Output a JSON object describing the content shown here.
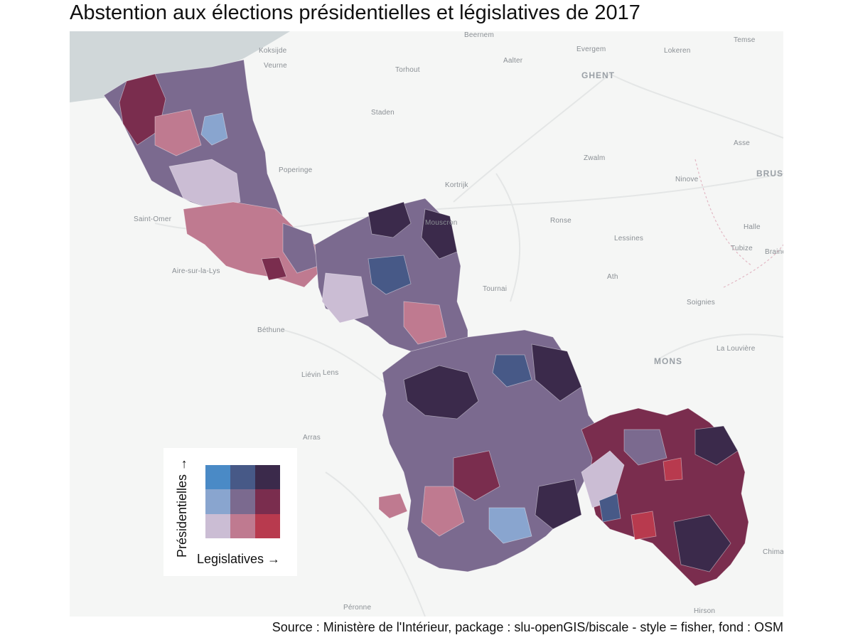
{
  "title": "Abstention aux élections présidentielles et législatives de 2017",
  "source": "Source : Ministère de l'Intérieur, package : slu-openGIS/biscale - style = fisher, fond : OSM",
  "legend": {
    "x_label": "Legislatives →",
    "y_label": "Présidentielles →",
    "colors_top_to_bottom": [
      [
        "#4a8ac6",
        "#475987",
        "#3b2a4b"
      ],
      [
        "#89a5cf",
        "#7b6a8f",
        "#7a2d4e"
      ],
      [
        "#cbbdd4",
        "#bf7a90",
        "#b83a4e"
      ]
    ]
  },
  "map": {
    "sea_color": "#d0d7d9",
    "land_color": "#f5f6f5",
    "places": [
      {
        "name": "Beernem",
        "style": "small"
      },
      {
        "name": "Koksijde",
        "style": "small"
      },
      {
        "name": "Veurne",
        "style": "small"
      },
      {
        "name": "Torhout",
        "style": "small"
      },
      {
        "name": "Aalter",
        "style": "small"
      },
      {
        "name": "Evergem",
        "style": "small"
      },
      {
        "name": "Lokeren",
        "style": "small"
      },
      {
        "name": "Temse",
        "style": "small"
      },
      {
        "name": "GHENT",
        "style": "big"
      },
      {
        "name": "Staden",
        "style": "small"
      },
      {
        "name": "Asse",
        "style": "small"
      },
      {
        "name": "Zwalm",
        "style": "small"
      },
      {
        "name": "BRUS",
        "style": "big"
      },
      {
        "name": "Poperinge",
        "style": "small"
      },
      {
        "name": "Kortrijk",
        "style": "small"
      },
      {
        "name": "Ninove",
        "style": "small"
      },
      {
        "name": "Saint-Omer",
        "style": "small"
      },
      {
        "name": "Mouscron",
        "style": "small"
      },
      {
        "name": "Ronse",
        "style": "small"
      },
      {
        "name": "Halle",
        "style": "small"
      },
      {
        "name": "Lessines",
        "style": "small"
      },
      {
        "name": "Tubize",
        "style": "small"
      },
      {
        "name": "Braine",
        "style": "small"
      },
      {
        "name": "Aire-sur-la-Lys",
        "style": "small"
      },
      {
        "name": "Ath",
        "style": "small"
      },
      {
        "name": "Tournai",
        "style": "small"
      },
      {
        "name": "Soignies",
        "style": "small"
      },
      {
        "name": "Béthune",
        "style": "small"
      },
      {
        "name": "La Louvière",
        "style": "small"
      },
      {
        "name": "MONS",
        "style": "big"
      },
      {
        "name": "Liévin",
        "style": "small"
      },
      {
        "name": "Lens",
        "style": "small"
      },
      {
        "name": "Arras",
        "style": "small"
      },
      {
        "name": "Chima",
        "style": "small"
      },
      {
        "name": "Péronne",
        "style": "small"
      },
      {
        "name": "Hirson",
        "style": "small"
      }
    ]
  }
}
